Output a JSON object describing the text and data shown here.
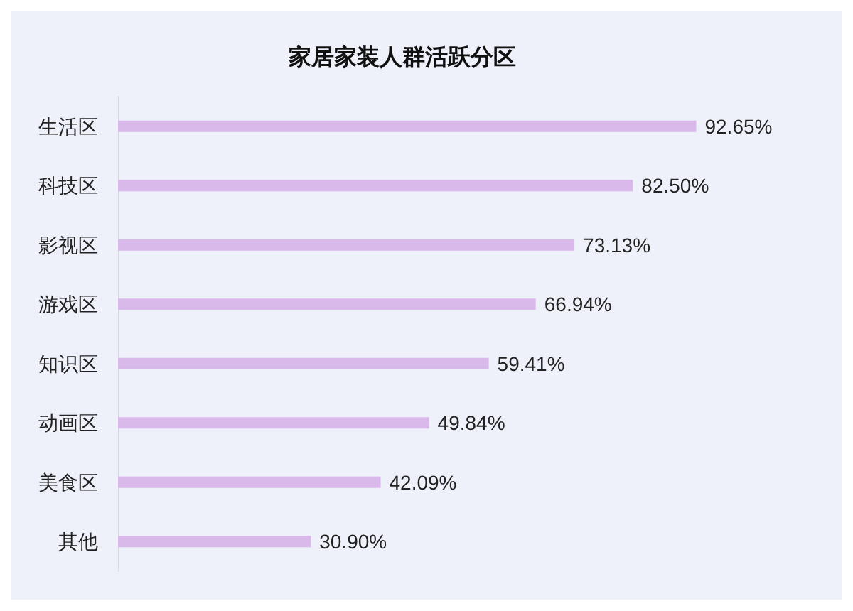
{
  "chart_data": {
    "type": "bar",
    "orientation": "horizontal",
    "title": "家居家装人群活跃分区",
    "categories": [
      "生活区",
      "科技区",
      "影视区",
      "游戏区",
      "知识区",
      "动画区",
      "美食区",
      "其他"
    ],
    "values": [
      92.65,
      82.5,
      73.13,
      66.94,
      59.41,
      49.84,
      42.09,
      30.9
    ],
    "value_labels": [
      "92.65%",
      "82.50%",
      "73.13%",
      "66.94%",
      "59.41%",
      "49.84%",
      "42.09%",
      "30.90%"
    ],
    "color": "#d8b9ea",
    "tick_labels": "y",
    "grid": false
  }
}
